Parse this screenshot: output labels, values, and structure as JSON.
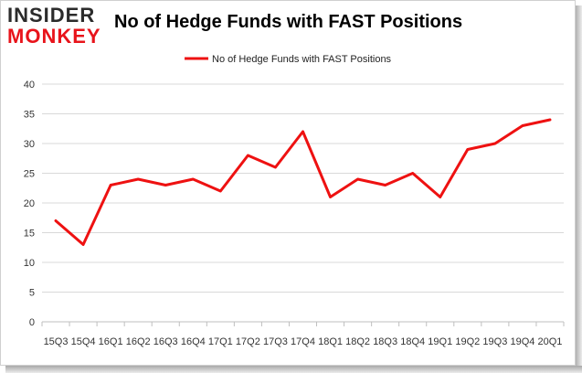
{
  "logo": {
    "top": "INSIDER",
    "bottom": "MONKEY"
  },
  "chart_data": {
    "type": "line",
    "title": "No of Hedge Funds with FAST Positions",
    "xlabel": "",
    "ylabel": "",
    "categories": [
      "15Q3",
      "15Q4",
      "16Q1",
      "16Q2",
      "16Q3",
      "16Q4",
      "17Q1",
      "17Q2",
      "17Q3",
      "17Q4",
      "18Q1",
      "18Q2",
      "18Q3",
      "18Q4",
      "19Q1",
      "19Q2",
      "19Q3",
      "19Q4",
      "20Q1"
    ],
    "series": [
      {
        "name": "No of Hedge Funds with FAST Positions",
        "values": [
          17,
          13,
          23,
          24,
          23,
          24,
          22,
          28,
          26,
          32,
          21,
          24,
          23,
          25,
          21,
          29,
          30,
          33,
          34
        ]
      }
    ],
    "ylim": [
      0,
      40
    ],
    "yticks": [
      0,
      5,
      10,
      15,
      20,
      25,
      30,
      35,
      40
    ],
    "grid": true,
    "legend": "top-center",
    "line_color": "#ee1111"
  }
}
